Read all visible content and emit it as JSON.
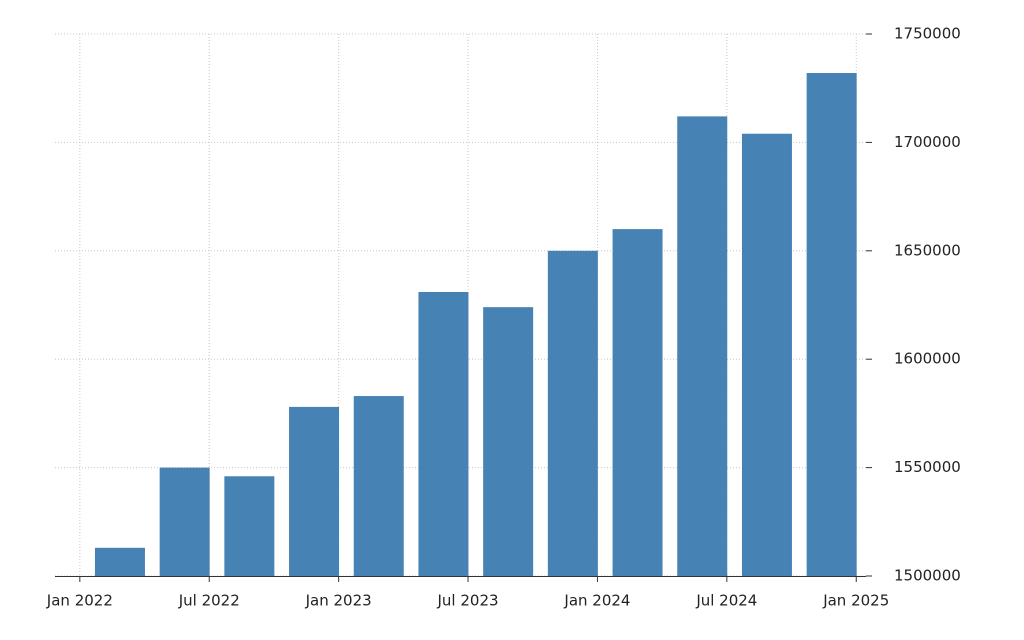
{
  "chart_data": {
    "type": "bar",
    "categories": [
      null,
      null,
      null,
      null,
      null,
      null,
      null,
      null,
      null,
      null,
      null,
      null
    ],
    "values": [
      1513000,
      1550000,
      1546000,
      1578000,
      1583000,
      1631000,
      1624000,
      1650000,
      1660000,
      1712000,
      1704000,
      1732000
    ],
    "color": "#4682b4",
    "xtick_labels": [
      "Jan 2022",
      "Jul 2022",
      "Jan 2023",
      "Jul 2023",
      "Jan 2024",
      "Jul 2024",
      "Jan 2025"
    ],
    "ylim": [
      1500000,
      1750000
    ],
    "yticks": [
      1500000,
      1550000,
      1600000,
      1650000,
      1700000,
      1750000
    ],
    "grid": true
  }
}
